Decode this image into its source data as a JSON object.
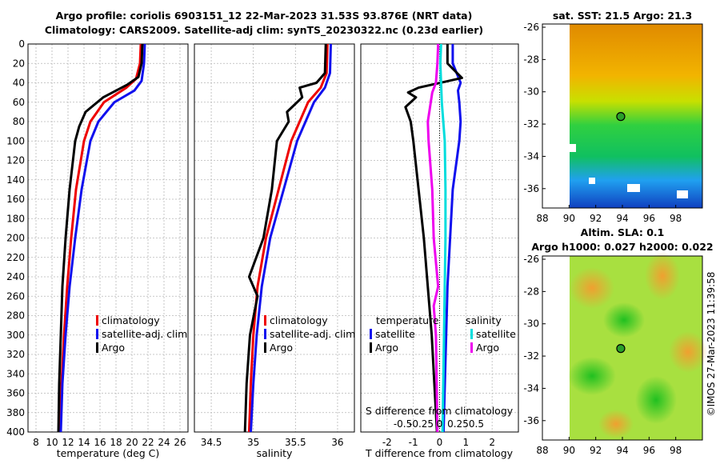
{
  "figure": {
    "title_line1": "Argo profile: coriolis 6903151_12 22-Mar-2023 31.53S 93.876E (NRT data)",
    "title_line2": "Climatology: CARS2009. Satellite-adj clim: synTS_20230322.nc (0.23d earlier)",
    "sst_title": "sat. SST: 21.5 Argo: 21.3",
    "sla_title_line1": "Altim. SLA: 0.1",
    "sla_title_line2": "Argo h1000: 0.027 h2000: 0.022",
    "timestamp": "©IMOS 27-Mar-2023 11:39:58"
  },
  "colors": {
    "climatology": "#ee0000",
    "satellite": "#1010ee",
    "argo": "#000000",
    "salinity_argo": "#ee00ee",
    "salinity_satellite": "#00dddd",
    "grid": "#b8b8b8"
  },
  "chart_data": [
    {
      "type": "line",
      "name": "temperature",
      "xlabel": "temperature (deg C)",
      "ylabel": "",
      "xlim": [
        7,
        27
      ],
      "ylim": [
        0,
        400
      ],
      "y_inverted": true,
      "xticks": [
        "8",
        "10",
        "12",
        "14",
        "16",
        "18",
        "20",
        "22",
        "24",
        "26"
      ],
      "yticks": [
        "0",
        "20",
        "40",
        "60",
        "80",
        "100",
        "120",
        "140",
        "160",
        "180",
        "200",
        "220",
        "240",
        "260",
        "280",
        "300",
        "320",
        "340",
        "360",
        "380",
        "400"
      ],
      "legend": [
        "climatology",
        "satellite-adj. clim",
        "Argo"
      ],
      "series": [
        {
          "name": "climatology",
          "depth": [
            0,
            20,
            36,
            45,
            60,
            80,
            100,
            150,
            200,
            250,
            300,
            350,
            400
          ],
          "values": [
            21.1,
            21.0,
            20.5,
            19.3,
            16.5,
            14.8,
            14.0,
            13.0,
            12.4,
            11.9,
            11.5,
            11.2,
            11.0
          ]
        },
        {
          "name": "satellite-adj. clim",
          "depth": [
            0,
            20,
            38,
            48,
            60,
            80,
            100,
            150,
            200,
            250,
            300,
            350,
            400
          ],
          "values": [
            21.6,
            21.5,
            21.2,
            20.3,
            17.8,
            15.8,
            14.8,
            13.7,
            12.9,
            12.2,
            11.7,
            11.3,
            11.1
          ]
        },
        {
          "name": "Argo",
          "depth": [
            0,
            20,
            34,
            42,
            55,
            70,
            85,
            100,
            150,
            200,
            250,
            300,
            350,
            400
          ],
          "values": [
            21.3,
            21.2,
            20.8,
            19.4,
            16.4,
            14.2,
            13.4,
            12.9,
            12.2,
            11.7,
            11.3,
            11.1,
            10.9,
            10.8
          ]
        }
      ]
    },
    {
      "type": "line",
      "name": "salinity",
      "xlabel": "salinity",
      "xlim": [
        34.3,
        36.2
      ],
      "ylim": [
        0,
        400
      ],
      "y_inverted": true,
      "xticks": [
        "34.5",
        "35",
        "35.5",
        "36"
      ],
      "legend": [
        "climatology",
        "satellite-adj. clim",
        "Argo"
      ],
      "series": [
        {
          "name": "climatology",
          "depth": [
            0,
            30,
            45,
            60,
            80,
            100,
            150,
            200,
            250,
            300,
            350,
            400
          ],
          "values": [
            35.88,
            35.87,
            35.8,
            35.65,
            35.55,
            35.45,
            35.3,
            35.15,
            35.05,
            35.0,
            34.97,
            34.95
          ]
        },
        {
          "name": "satellite-adj. clim",
          "depth": [
            0,
            30,
            45,
            60,
            80,
            100,
            150,
            200,
            250,
            300,
            350,
            400
          ],
          "values": [
            35.92,
            35.91,
            35.85,
            35.72,
            35.62,
            35.52,
            35.36,
            35.2,
            35.1,
            35.04,
            35.0,
            34.97
          ]
        },
        {
          "name": "Argo",
          "depth": [
            0,
            30,
            40,
            45,
            55,
            70,
            80,
            100,
            150,
            200,
            240,
            260,
            300,
            350,
            400
          ],
          "values": [
            35.86,
            35.85,
            35.75,
            35.55,
            35.58,
            35.4,
            35.42,
            35.28,
            35.22,
            35.12,
            34.95,
            35.05,
            34.96,
            34.92,
            34.9
          ]
        }
      ]
    },
    {
      "type": "line",
      "name": "difference",
      "xlabel": "T difference from climatology",
      "top_label": "S difference from climatology",
      "xlim": [
        -3,
        3
      ],
      "ylim": [
        0,
        400
      ],
      "y_inverted": true,
      "xticks": [
        "-2",
        "-1",
        "0",
        "1",
        "2"
      ],
      "s_xticks": [
        "-0.5",
        "-0.25",
        "0",
        "0.25",
        "0.5"
      ],
      "legend_left_title": "temperature",
      "legend_right_title": "salinity",
      "legend_left": [
        "satellite",
        "Argo"
      ],
      "legend_right": [
        "satellite",
        "Argo"
      ],
      "series": [
        {
          "name": "temperature satellite",
          "depth": [
            0,
            20,
            40,
            48,
            60,
            80,
            100,
            150,
            200,
            250,
            300,
            350,
            400
          ],
          "values": [
            0.5,
            0.5,
            0.8,
            0.7,
            0.75,
            0.8,
            0.75,
            0.5,
            0.4,
            0.3,
            0.25,
            0.2,
            0.15
          ]
        },
        {
          "name": "temperature Argo",
          "depth": [
            0,
            20,
            35,
            45,
            50,
            55,
            65,
            80,
            100,
            150,
            200,
            250,
            300,
            350,
            400
          ],
          "values": [
            0.3,
            0.3,
            0.85,
            -0.8,
            -1.2,
            -0.9,
            -1.3,
            -1.1,
            -1.0,
            -0.8,
            -0.6,
            -0.45,
            -0.3,
            -0.2,
            -0.1
          ]
        },
        {
          "name": "salinity satellite",
          "depth": [
            0,
            20,
            40,
            60,
            100,
            150,
            200,
            250,
            300,
            350,
            400
          ],
          "values": [
            0.02,
            0.01,
            0.02,
            0.03,
            0.07,
            0.08,
            0.08,
            0.07,
            0.06,
            0.05,
            0.04
          ]
        },
        {
          "name": "salinity Argo",
          "depth": [
            0,
            20,
            40,
            50,
            60,
            80,
            100,
            150,
            200,
            250,
            270,
            300,
            350,
            400
          ],
          "values": [
            -0.02,
            -0.03,
            -0.05,
            -0.1,
            -0.12,
            -0.16,
            -0.15,
            -0.1,
            -0.08,
            -0.02,
            -0.08,
            -0.05,
            -0.04,
            -0.03
          ]
        }
      ]
    },
    {
      "type": "heatmap",
      "name": "sst_map",
      "xlim": [
        88,
        100
      ],
      "ylim": [
        -37.2,
        -25.8
      ],
      "xticks": [
        "88",
        "90",
        "92",
        "94",
        "96",
        "98"
      ],
      "yticks": [
        "-26",
        "-28",
        "-30",
        "-32",
        "-34",
        "-36"
      ],
      "marker": {
        "lon": 93.876,
        "lat": -31.53
      }
    },
    {
      "type": "heatmap",
      "name": "sla_map",
      "xlim": [
        88,
        100
      ],
      "ylim": [
        -37.2,
        -25.8
      ],
      "xticks": [
        "88",
        "90",
        "92",
        "94",
        "96",
        "98"
      ],
      "yticks": [
        "-26",
        "-28",
        "-30",
        "-32",
        "-34",
        "-36"
      ],
      "marker": {
        "lon": 93.876,
        "lat": -31.53
      }
    }
  ]
}
